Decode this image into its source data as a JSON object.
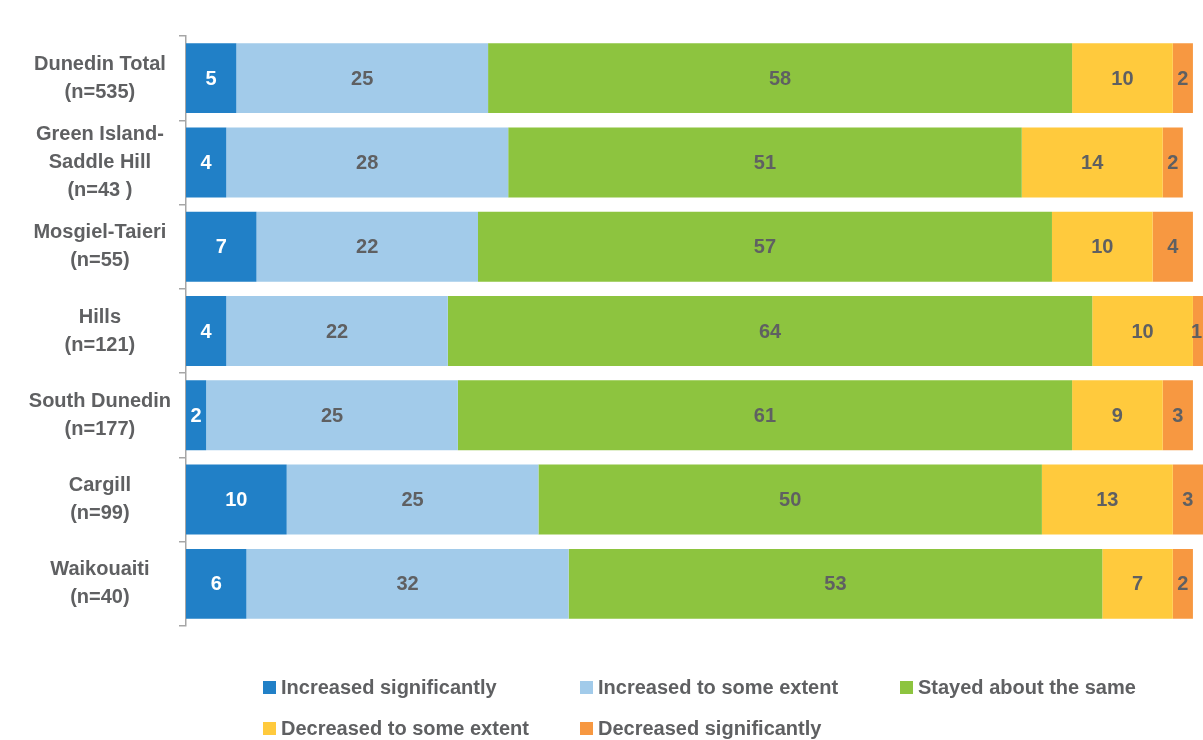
{
  "chart_data": {
    "type": "bar",
    "orientation": "horizontal",
    "stacked": true,
    "data_labels": true,
    "tick_labels": "y",
    "legend": "bottom",
    "xlim": [
      0,
      101
    ],
    "categories": [
      "Dunedin Total\n(n=535)",
      "Green Island-\nSaddle Hill\n(n=43 )",
      "Mosgiel-Taieri\n(n=55)",
      "Hills\n(n=121)",
      "South Dunedin\n(n=177)",
      "Cargill\n(n=99)",
      "Waikouaiti\n(n=40)"
    ],
    "series": [
      {
        "name": "Increased significantly",
        "color": "#2180c7",
        "values": [
          5,
          4,
          7,
          4,
          2,
          10,
          6
        ]
      },
      {
        "name": "Increased to some extent",
        "color": "#a2cbea",
        "values": [
          25,
          28,
          22,
          22,
          25,
          25,
          32
        ]
      },
      {
        "name": "Stayed about the same",
        "color": "#8dc43f",
        "values": [
          58,
          51,
          57,
          64,
          61,
          50,
          53
        ]
      },
      {
        "name": "Decreased to some extent",
        "color": "#ffca3d",
        "values": [
          10,
          14,
          10,
          10,
          9,
          13,
          7
        ]
      },
      {
        "name": "Decreased significantly",
        "color": "#f79841",
        "values": [
          2,
          2,
          4,
          1,
          3,
          3,
          2
        ]
      }
    ]
  }
}
